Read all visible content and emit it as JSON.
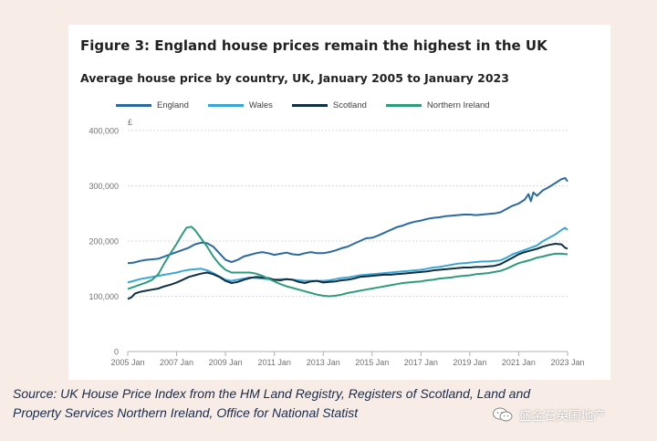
{
  "figure": {
    "title": "Figure 3: England house prices remain the highest in the UK",
    "subtitle": "Average house price by country, UK, January 2005 to January 2023"
  },
  "source_note": "Source: UK House Price Index from the HM Land Registry, Registers of Scotland, Land and Property Services Northern Ireland, Office for National Statist",
  "watermark": {
    "text": "盛金石英国地产",
    "icon": "wechat-logo"
  },
  "colors": {
    "England": "#2b6a9e",
    "Wales": "#3aa6d4",
    "Scotland": "#0f2f45",
    "Northern Ireland": "#2c9c7c"
  },
  "chart_data": {
    "type": "line",
    "title": "Average house price by country, UK, January 2005 to January 2023",
    "y_unit_label": "£",
    "xlim": [
      2005,
      2023
    ],
    "ylim": [
      0,
      400000
    ],
    "x_ticks": [
      2005,
      2007,
      2009,
      2011,
      2013,
      2015,
      2017,
      2019,
      2021,
      2023
    ],
    "x_tick_labels": [
      "2005 Jan",
      "2007 Jan",
      "2009 Jan",
      "2011 Jan",
      "2013 Jan",
      "2015 Jan",
      "2017 Jan",
      "2019 Jan",
      "2021 Jan",
      "2023 Jan"
    ],
    "y_ticks": [
      0,
      100000,
      200000,
      300000,
      400000
    ],
    "y_tick_labels": [
      "0",
      "100,000",
      "200,000",
      "300,000",
      "400,000"
    ],
    "grid": "horizontal",
    "legend_position": "top",
    "series": [
      {
        "name": "England",
        "x": [
          2005.0,
          2005.25,
          2005.5,
          2005.75,
          2006.0,
          2006.25,
          2006.5,
          2006.75,
          2007.0,
          2007.25,
          2007.5,
          2007.75,
          2008.0,
          2008.25,
          2008.5,
          2008.75,
          2009.0,
          2009.25,
          2009.5,
          2009.75,
          2010.0,
          2010.25,
          2010.5,
          2010.75,
          2011.0,
          2011.25,
          2011.5,
          2011.75,
          2012.0,
          2012.25,
          2012.5,
          2012.75,
          2013.0,
          2013.25,
          2013.5,
          2013.75,
          2014.0,
          2014.25,
          2014.5,
          2014.75,
          2015.0,
          2015.25,
          2015.5,
          2015.75,
          2016.0,
          2016.25,
          2016.5,
          2016.75,
          2017.0,
          2017.25,
          2017.5,
          2017.75,
          2018.0,
          2018.25,
          2018.5,
          2018.75,
          2019.0,
          2019.25,
          2019.5,
          2019.75,
          2020.0,
          2020.25,
          2020.5,
          2020.75,
          2021.0,
          2021.25,
          2021.4,
          2021.5,
          2021.6,
          2021.75,
          2022.0,
          2022.25,
          2022.5,
          2022.75,
          2022.9,
          2023.0
        ],
        "values": [
          160000,
          161000,
          164000,
          166000,
          167000,
          168000,
          172000,
          176000,
          180000,
          184000,
          188000,
          194000,
          197000,
          196000,
          190000,
          178000,
          166000,
          162000,
          166000,
          172000,
          175000,
          178000,
          180000,
          178000,
          175000,
          177000,
          179000,
          176000,
          175000,
          178000,
          180000,
          178000,
          178000,
          180000,
          183000,
          187000,
          190000,
          195000,
          200000,
          205000,
          206000,
          210000,
          215000,
          220000,
          225000,
          228000,
          232000,
          235000,
          237000,
          240000,
          242000,
          243000,
          245000,
          246000,
          247000,
          248000,
          248000,
          247000,
          248000,
          249000,
          250000,
          252000,
          258000,
          264000,
          268000,
          275000,
          285000,
          272000,
          288000,
          282000,
          292000,
          298000,
          305000,
          312000,
          314000,
          308000
        ]
      },
      {
        "name": "Wales",
        "x": [
          2005.0,
          2005.25,
          2005.5,
          2005.75,
          2006.0,
          2006.25,
          2006.5,
          2006.75,
          2007.0,
          2007.25,
          2007.5,
          2007.75,
          2008.0,
          2008.25,
          2008.5,
          2008.75,
          2009.0,
          2009.25,
          2009.5,
          2009.75,
          2010.0,
          2010.25,
          2010.5,
          2010.75,
          2011.0,
          2011.25,
          2011.5,
          2011.75,
          2012.0,
          2012.25,
          2012.5,
          2012.75,
          2013.0,
          2013.25,
          2013.5,
          2013.75,
          2014.0,
          2014.25,
          2014.5,
          2014.75,
          2015.0,
          2015.25,
          2015.5,
          2015.75,
          2016.0,
          2016.25,
          2016.5,
          2016.75,
          2017.0,
          2017.25,
          2017.5,
          2017.75,
          2018.0,
          2018.25,
          2018.5,
          2018.75,
          2019.0,
          2019.25,
          2019.5,
          2019.75,
          2020.0,
          2020.25,
          2020.5,
          2020.75,
          2021.0,
          2021.25,
          2021.5,
          2021.75,
          2022.0,
          2022.25,
          2022.5,
          2022.75,
          2022.9,
          2023.0
        ],
        "values": [
          125000,
          128000,
          131000,
          133000,
          135000,
          137000,
          139000,
          141000,
          143000,
          146000,
          148000,
          149000,
          150000,
          147000,
          142000,
          136000,
          130000,
          128000,
          130000,
          132000,
          134000,
          133000,
          132000,
          131000,
          130000,
          131000,
          131000,
          130000,
          129000,
          128000,
          128000,
          128000,
          128000,
          129000,
          131000,
          133000,
          134000,
          136000,
          138000,
          139000,
          140000,
          141000,
          142000,
          143000,
          144000,
          145000,
          146000,
          147000,
          148000,
          150000,
          152000,
          153000,
          155000,
          157000,
          159000,
          160000,
          161000,
          162000,
          163000,
          163000,
          164000,
          165000,
          170000,
          176000,
          180000,
          184000,
          188000,
          192000,
          200000,
          206000,
          212000,
          220000,
          224000,
          220000
        ]
      },
      {
        "name": "Scotland",
        "x": [
          2005.0,
          2005.15,
          2005.3,
          2005.5,
          2005.75,
          2006.0,
          2006.25,
          2006.5,
          2006.75,
          2007.0,
          2007.25,
          2007.5,
          2007.75,
          2008.0,
          2008.25,
          2008.5,
          2008.75,
          2009.0,
          2009.25,
          2009.5,
          2009.75,
          2010.0,
          2010.25,
          2010.5,
          2010.75,
          2011.0,
          2011.25,
          2011.5,
          2011.75,
          2012.0,
          2012.25,
          2012.5,
          2012.75,
          2013.0,
          2013.25,
          2013.5,
          2013.75,
          2014.0,
          2014.25,
          2014.5,
          2014.75,
          2015.0,
          2015.25,
          2015.5,
          2015.75,
          2016.0,
          2016.25,
          2016.5,
          2016.75,
          2017.0,
          2017.25,
          2017.5,
          2017.75,
          2018.0,
          2018.25,
          2018.5,
          2018.75,
          2019.0,
          2019.25,
          2019.5,
          2019.75,
          2020.0,
          2020.25,
          2020.5,
          2020.75,
          2021.0,
          2021.25,
          2021.5,
          2021.75,
          2022.0,
          2022.25,
          2022.5,
          2022.75,
          2022.9,
          2023.0
        ],
        "values": [
          95000,
          98000,
          105000,
          108000,
          110000,
          112000,
          114000,
          118000,
          121000,
          125000,
          130000,
          135000,
          138000,
          141000,
          143000,
          140000,
          135000,
          128000,
          124000,
          126000,
          130000,
          133000,
          135000,
          134000,
          133000,
          130000,
          129000,
          131000,
          130000,
          126000,
          124000,
          127000,
          128000,
          125000,
          126000,
          127000,
          129000,
          130000,
          132000,
          135000,
          136000,
          137000,
          138000,
          139000,
          139000,
          140000,
          141000,
          142000,
          143000,
          144000,
          145000,
          147000,
          148000,
          149000,
          150000,
          151000,
          152000,
          152000,
          153000,
          153000,
          154000,
          155000,
          158000,
          164000,
          170000,
          176000,
          180000,
          183000,
          186000,
          190000,
          193000,
          195000,
          194000,
          188000,
          186000
        ]
      },
      {
        "name": "Northern Ireland",
        "x": [
          2005.0,
          2005.25,
          2005.5,
          2005.75,
          2006.0,
          2006.25,
          2006.5,
          2006.75,
          2007.0,
          2007.2,
          2007.4,
          2007.6,
          2007.75,
          2008.0,
          2008.25,
          2008.5,
          2008.75,
          2009.0,
          2009.25,
          2009.5,
          2009.75,
          2010.0,
          2010.25,
          2010.5,
          2010.75,
          2011.0,
          2011.25,
          2011.5,
          2011.75,
          2012.0,
          2012.25,
          2012.5,
          2012.75,
          2013.0,
          2013.25,
          2013.5,
          2013.75,
          2014.0,
          2014.25,
          2014.5,
          2014.75,
          2015.0,
          2015.25,
          2015.5,
          2015.75,
          2016.0,
          2016.25,
          2016.5,
          2016.75,
          2017.0,
          2017.25,
          2017.5,
          2017.75,
          2018.0,
          2018.25,
          2018.5,
          2018.75,
          2019.0,
          2019.25,
          2019.5,
          2019.75,
          2020.0,
          2020.25,
          2020.5,
          2020.75,
          2021.0,
          2021.25,
          2021.5,
          2021.75,
          2022.0,
          2022.25,
          2022.5,
          2022.75,
          2023.0
        ],
        "values": [
          113000,
          117000,
          121000,
          125000,
          130000,
          140000,
          160000,
          178000,
          195000,
          210000,
          224000,
          226000,
          220000,
          205000,
          190000,
          172000,
          158000,
          148000,
          143000,
          143000,
          143000,
          143000,
          141000,
          137000,
          132000,
          127000,
          122000,
          118000,
          115000,
          112000,
          109000,
          106000,
          103000,
          101000,
          100000,
          101000,
          103000,
          106000,
          108000,
          110000,
          112000,
          114000,
          116000,
          118000,
          120000,
          122000,
          124000,
          125000,
          126000,
          127000,
          129000,
          130000,
          132000,
          133000,
          134000,
          136000,
          137000,
          138000,
          140000,
          141000,
          142000,
          144000,
          146000,
          150000,
          155000,
          160000,
          163000,
          166000,
          170000,
          172000,
          175000,
          177000,
          177000,
          176000
        ]
      }
    ]
  }
}
